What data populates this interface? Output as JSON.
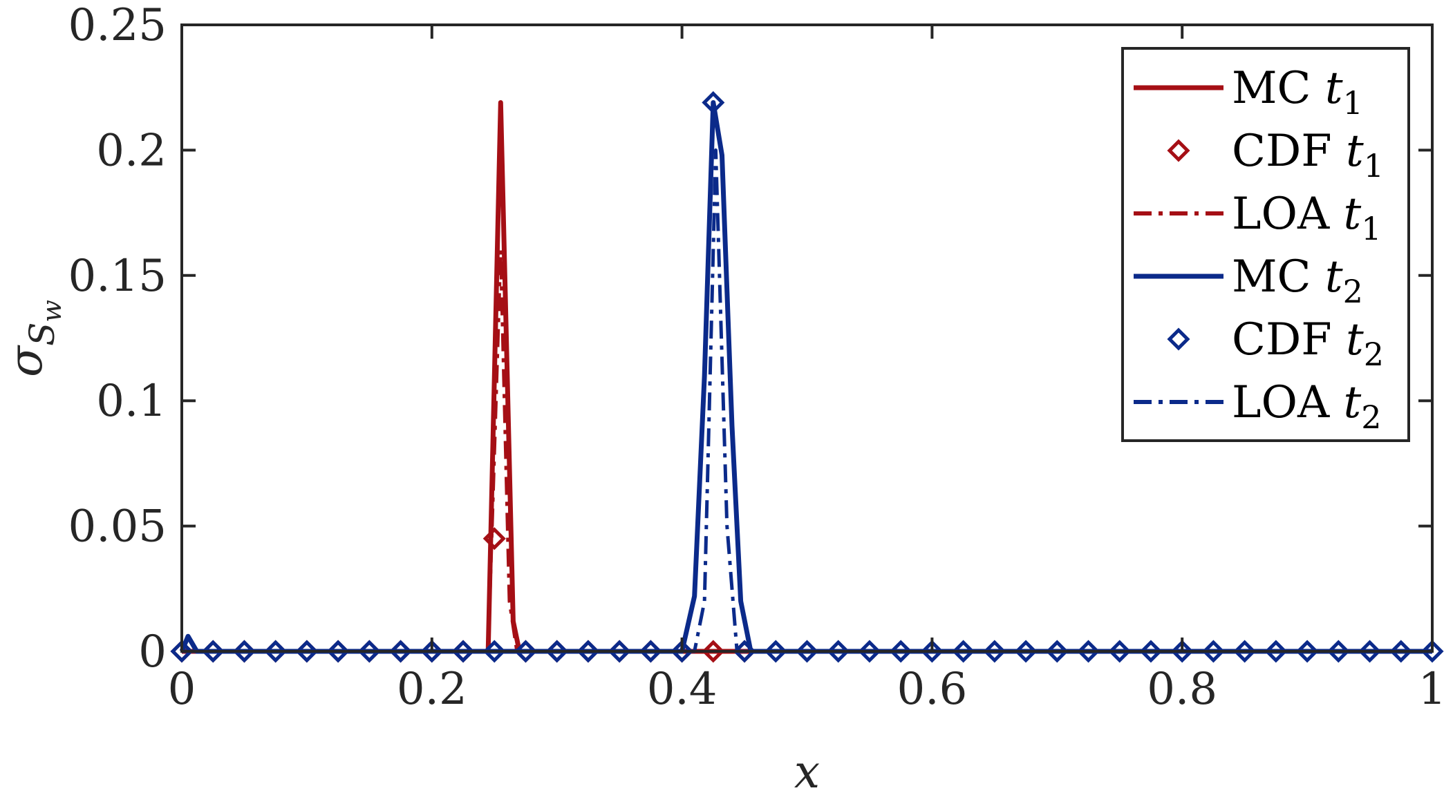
{
  "chart_data": {
    "type": "line",
    "xlabel": "x",
    "ylabel": "σ",
    "ylabel_sub": "S",
    "ylabel_subsub": "w",
    "xlim": [
      0,
      1
    ],
    "ylim": [
      0,
      0.25
    ],
    "xticks": [
      0,
      0.2,
      0.4,
      0.6,
      0.8,
      1
    ],
    "xtick_labels": [
      "0",
      "0.2",
      "0.4",
      "0.6",
      "0.8",
      "1"
    ],
    "yticks": [
      0,
      0.05,
      0.1,
      0.15,
      0.2,
      0.25
    ],
    "ytick_labels": [
      "0",
      "0.05",
      "0.1",
      "0.15",
      "0.2",
      "0.25"
    ],
    "grid": false,
    "legend_position": "top-right",
    "colors": {
      "red": "#A50F15",
      "blue": "#0B2A8A",
      "axis": "#262626"
    },
    "series": [
      {
        "name": "MC",
        "sub": "1",
        "style": "solid",
        "color": "#A50F15",
        "x": [
          0,
          0.245,
          0.255,
          0.265,
          0.27,
          1
        ],
        "y": [
          0,
          0,
          0.219,
          0.012,
          0,
          0
        ]
      },
      {
        "name": "CDF",
        "sub": "1",
        "style": "marker",
        "color": "#A50F15",
        "x": [
          0,
          0.025,
          0.05,
          0.075,
          0.1,
          0.125,
          0.15,
          0.175,
          0.2,
          0.225,
          0.25,
          0.275,
          0.3,
          0.325,
          0.35,
          0.375,
          0.4,
          0.425,
          0.45
        ],
        "y": [
          0,
          0,
          0,
          0,
          0,
          0,
          0,
          0,
          0,
          0,
          0.045,
          0,
          0,
          0,
          0,
          0,
          0,
          0,
          0
        ]
      },
      {
        "name": "LOA",
        "sub": "1",
        "style": "dashdot",
        "color": "#A50F15",
        "x": [
          0,
          0.245,
          0.255,
          0.262,
          0.268,
          1
        ],
        "y": [
          0,
          0,
          0.16,
          0.02,
          0,
          0
        ]
      },
      {
        "name": "MC",
        "sub": "2",
        "style": "solid",
        "color": "#0B2A8A",
        "x": [
          0,
          0.005,
          0.012,
          0.4,
          0.41,
          0.418,
          0.425,
          0.432,
          0.44,
          0.447,
          0.455,
          1
        ],
        "y": [
          0,
          0.006,
          0,
          0,
          0.022,
          0.11,
          0.219,
          0.198,
          0.09,
          0.02,
          0,
          0
        ]
      },
      {
        "name": "CDF",
        "sub": "2",
        "style": "marker",
        "color": "#0B2A8A",
        "x": [
          0,
          0.025,
          0.05,
          0.075,
          0.1,
          0.125,
          0.15,
          0.175,
          0.2,
          0.225,
          0.25,
          0.275,
          0.3,
          0.325,
          0.35,
          0.375,
          0.4,
          0.425,
          0.45,
          0.475,
          0.5,
          0.525,
          0.55,
          0.575,
          0.6,
          0.625,
          0.65,
          0.675,
          0.7,
          0.725,
          0.75,
          0.775,
          0.8,
          0.825,
          0.85,
          0.875,
          0.9,
          0.925,
          0.95,
          0.975,
          1
        ],
        "y": [
          0,
          0,
          0,
          0,
          0,
          0,
          0,
          0,
          0,
          0,
          0,
          0,
          0,
          0,
          0,
          0,
          0,
          0.219,
          0,
          0,
          0,
          0,
          0,
          0,
          0,
          0,
          0,
          0,
          0,
          0,
          0,
          0,
          0,
          0,
          0,
          0,
          0,
          0,
          0,
          0,
          0
        ]
      },
      {
        "name": "LOA",
        "sub": "2",
        "style": "dashdot",
        "color": "#0B2A8A",
        "x": [
          0,
          0.41,
          0.418,
          0.427,
          0.436,
          0.444,
          1
        ],
        "y": [
          0,
          0,
          0.02,
          0.2,
          0.05,
          0,
          0
        ]
      }
    ]
  }
}
